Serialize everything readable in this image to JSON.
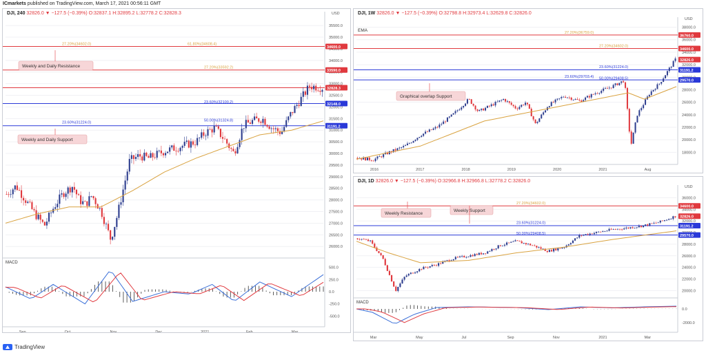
{
  "header": {
    "publisher": "ICmarkets",
    "published_text": " published on TradingView.com, March 17, 2021 00:56:11 GMT"
  },
  "footer": {
    "brand": "TradingView"
  },
  "colors": {
    "up": "#2f3f8f",
    "down": "#e0393e",
    "ma": "#d9a23f",
    "fib": "#d9a23f",
    "blue_line": "#2a39d8",
    "red_line": "#e0393e",
    "macd": "#3a6fd8",
    "signal": "#e0393e"
  },
  "panels": {
    "left": {
      "symbol": "DJI, 240",
      "ohlc": " 32826.0 ▼ −127.5 (−0.39%) O:32837.1 H:32895.2 L:32778.2 C:32828.3",
      "currency": "USD",
      "y_ticks": [
        "35500.0",
        "35000.0",
        "34500.0",
        "34000.0",
        "33500.0",
        "33000.0",
        "32500.0",
        "32000.0",
        "31500.0",
        "31000.0",
        "30500.0",
        "30000.0",
        "29500.0",
        "29000.0",
        "28500.0",
        "28000.0",
        "27500.0",
        "27000.0",
        "26500.0",
        "26000.0"
      ],
      "x_ticks": [
        "Sep",
        "Oct",
        "Nov",
        "Dec",
        "2021",
        "Feb",
        "Mar"
      ],
      "price_tags": [
        {
          "text": "34600.0",
          "color": "#e0393e",
          "value": 34600
        },
        {
          "text": "33590.0",
          "color": "#e0393e",
          "value": 33590
        },
        {
          "text": "32828.3",
          "color": "#e0393e",
          "value": 32828
        },
        {
          "text": "32148.0",
          "color": "#2a39d8",
          "value": 32148
        },
        {
          "text": "31191.2",
          "color": "#2a39d8",
          "value": 31191
        }
      ],
      "fib_labels": [
        {
          "text": "27.20%(34602.0)",
          "value": 34602,
          "color": "#d9a23f"
        },
        {
          "text": "61.80%(34608.4)",
          "value": 34608,
          "color": "#d9a23f"
        },
        {
          "text": "27.20%(33592.2)",
          "value": 33592,
          "color": "#d9a23f"
        },
        {
          "text": "23.60%(32100.2)",
          "value": 32100,
          "color": "#2a39d8"
        },
        {
          "text": "23.60%(31224.0)",
          "value": 31224,
          "color": "#2a39d8"
        },
        {
          "text": "50.00%(31324.8)",
          "value": 31324,
          "color": "#2a39d8"
        }
      ],
      "callouts": [
        "Weekly and Daily Resistance",
        "Weekly and Daily Support"
      ],
      "macd_label": "MACD",
      "macd_ticks": [
        "500.0",
        "250.0",
        "0.0",
        "-250.0",
        "-500.0"
      ]
    },
    "top_right": {
      "symbol": "DJI, 1W",
      "ohlc": " 32826.0 ▼ −127.5 (−0.39%) O:32798.8 H:32973.4 L:32629.8 C:32826.0",
      "currency": "USD",
      "ema_label": "EMA",
      "y_ticks": [
        "38000.0",
        "36000.0",
        "34000.0",
        "32000.0",
        "30000.0",
        "28000.0",
        "26000.0",
        "24000.0",
        "22000.0",
        "20000.0",
        "18000.0"
      ],
      "x_ticks": [
        "2016",
        "2017",
        "2018",
        "2019",
        "2020",
        "2021",
        "Aug"
      ],
      "price_tags": [
        {
          "text": "36760.0",
          "color": "#e0393e",
          "value": 36760
        },
        {
          "text": "34600.0",
          "color": "#e0393e",
          "value": 34600
        },
        {
          "text": "32826.0",
          "color": "#e0393e",
          "value": 32826
        },
        {
          "text": "31191.2",
          "color": "#2a39d8",
          "value": 31191
        },
        {
          "text": "29570.0",
          "color": "#2a39d8",
          "value": 29570
        }
      ],
      "fib_labels": [
        {
          "text": "27.20%(36759.0)",
          "value": 36759,
          "color": "#d9a23f"
        },
        {
          "text": "27.20%(34602.0)",
          "value": 34602,
          "color": "#d9a23f"
        },
        {
          "text": "23.60%(31224.0)",
          "value": 31224,
          "color": "#2a39d8"
        },
        {
          "text": "23.60%(29703.4)",
          "value": 29703,
          "color": "#2a39d8"
        },
        {
          "text": "50.00%(29408.5)",
          "value": 29408,
          "color": "#2a39d8"
        }
      ],
      "callouts": [
        "Graphical overlap Support"
      ]
    },
    "bottom_right": {
      "symbol": "DJI, 1D",
      "ohlc": " 32826.0 ▼ −127.5 (−0.39%) O:32966.8 H:32966.8 L:32778.2 C:32826.0",
      "currency": "USD",
      "y_ticks": [
        "36000.0",
        "34000.0",
        "32000.0",
        "30000.0",
        "28000.0",
        "26000.0",
        "24000.0",
        "22000.0",
        "20000.0"
      ],
      "x_ticks": [
        "Mar",
        "May",
        "Jul",
        "Sep",
        "Nov",
        "2021",
        "Mar"
      ],
      "price_tags": [
        {
          "text": "34600.0",
          "color": "#e0393e",
          "value": 34600
        },
        {
          "text": "32826.0",
          "color": "#e0393e",
          "value": 32826
        },
        {
          "text": "31191.2",
          "color": "#2a39d8",
          "value": 31191
        },
        {
          "text": "29570.0",
          "color": "#2a39d8",
          "value": 29570
        }
      ],
      "fib_labels": [
        {
          "text": "27.20%(34602.0)",
          "value": 34602,
          "color": "#d9a23f"
        },
        {
          "text": "23.60%(31224.0)",
          "value": 31224,
          "color": "#2a39d8"
        },
        {
          "text": "50.00%(29408.5)",
          "value": 29408,
          "color": "#2a39d8"
        }
      ],
      "callouts": [
        "Weekly Resistance",
        "Weekly Support"
      ],
      "macd_label": "MACD",
      "macd_ticks": [
        "0.0",
        "-2000.0"
      ]
    }
  },
  "chart_data": [
    {
      "type": "candlestick",
      "title": "DJI, 240",
      "ylim": [
        25800,
        35800
      ],
      "path": [
        [
          0,
          28250
        ],
        [
          0.03,
          28600
        ],
        [
          0.06,
          28000
        ],
        [
          0.09,
          27400
        ],
        [
          0.12,
          26900
        ],
        [
          0.15,
          27700
        ],
        [
          0.18,
          28300
        ],
        [
          0.21,
          28600
        ],
        [
          0.23,
          28000
        ],
        [
          0.25,
          27800
        ],
        [
          0.27,
          28200
        ],
        [
          0.3,
          27500
        ],
        [
          0.33,
          26300
        ],
        [
          0.35,
          27300
        ],
        [
          0.37,
          28500
        ],
        [
          0.39,
          29700
        ],
        [
          0.42,
          29900
        ],
        [
          0.45,
          29800
        ],
        [
          0.5,
          30100
        ],
        [
          0.55,
          30300
        ],
        [
          0.6,
          30500
        ],
        [
          0.63,
          30900
        ],
        [
          0.66,
          31100
        ],
        [
          0.69,
          30600
        ],
        [
          0.72,
          30000
        ],
        [
          0.75,
          31200
        ],
        [
          0.78,
          31400
        ],
        [
          0.81,
          31500
        ],
        [
          0.84,
          31100
        ],
        [
          0.87,
          30900
        ],
        [
          0.9,
          31700
        ],
        [
          0.93,
          32300
        ],
        [
          0.96,
          32900
        ],
        [
          1.0,
          32828
        ]
      ],
      "ma": [
        [
          0,
          27000
        ],
        [
          0.1,
          27400
        ],
        [
          0.2,
          27700
        ],
        [
          0.3,
          27700
        ],
        [
          0.4,
          28400
        ],
        [
          0.5,
          29200
        ],
        [
          0.6,
          29800
        ],
        [
          0.7,
          30300
        ],
        [
          0.8,
          30800
        ],
        [
          0.9,
          31000
        ],
        [
          1.0,
          31400
        ]
      ],
      "macd": [
        [
          0,
          100
        ],
        [
          0.08,
          -150
        ],
        [
          0.15,
          150
        ],
        [
          0.25,
          -250
        ],
        [
          0.33,
          450
        ],
        [
          0.4,
          -200
        ],
        [
          0.5,
          0
        ],
        [
          0.58,
          -50
        ],
        [
          0.65,
          150
        ],
        [
          0.72,
          -200
        ],
        [
          0.8,
          200
        ],
        [
          0.9,
          -100
        ],
        [
          1.0,
          350
        ]
      ]
    },
    {
      "type": "candlestick",
      "title": "DJI, 1W",
      "ylim": [
        16500,
        38500
      ],
      "path": [
        [
          0,
          17100
        ],
        [
          0.05,
          16800
        ],
        [
          0.1,
          18000
        ],
        [
          0.15,
          19000
        ],
        [
          0.2,
          20800
        ],
        [
          0.25,
          22000
        ],
        [
          0.3,
          24000
        ],
        [
          0.35,
          26500
        ],
        [
          0.38,
          24500
        ],
        [
          0.42,
          25500
        ],
        [
          0.46,
          26500
        ],
        [
          0.5,
          25000
        ],
        [
          0.53,
          26000
        ],
        [
          0.56,
          22500
        ],
        [
          0.6,
          25500
        ],
        [
          0.65,
          27000
        ],
        [
          0.7,
          26200
        ],
        [
          0.75,
          27500
        ],
        [
          0.8,
          28500
        ],
        [
          0.84,
          29500
        ],
        [
          0.86,
          19000
        ],
        [
          0.88,
          24000
        ],
        [
          0.92,
          27500
        ],
        [
          0.95,
          29000
        ],
        [
          1.0,
          32826
        ]
      ],
      "ma": [
        [
          0,
          16900
        ],
        [
          0.2,
          19000
        ],
        [
          0.4,
          23000
        ],
        [
          0.6,
          25000
        ],
        [
          0.8,
          27000
        ],
        [
          0.85,
          27500
        ],
        [
          0.9,
          26500
        ],
        [
          1.0,
          28500
        ]
      ]
    },
    {
      "type": "candlestick",
      "title": "DJI, 1D",
      "ylim": [
        18500,
        37000
      ],
      "path": [
        [
          0,
          29000
        ],
        [
          0.04,
          28500
        ],
        [
          0.08,
          25500
        ],
        [
          0.12,
          20000
        ],
        [
          0.15,
          22500
        ],
        [
          0.2,
          23800
        ],
        [
          0.25,
          24500
        ],
        [
          0.3,
          25500
        ],
        [
          0.35,
          26000
        ],
        [
          0.4,
          26500
        ],
        [
          0.45,
          27800
        ],
        [
          0.5,
          28500
        ],
        [
          0.55,
          27800
        ],
        [
          0.6,
          26800
        ],
        [
          0.65,
          27500
        ],
        [
          0.7,
          29500
        ],
        [
          0.75,
          30000
        ],
        [
          0.8,
          30500
        ],
        [
          0.85,
          30800
        ],
        [
          0.9,
          31200
        ],
        [
          0.95,
          31800
        ],
        [
          1.0,
          32826
        ]
      ],
      "ma": [
        [
          0,
          28500
        ],
        [
          0.1,
          26500
        ],
        [
          0.2,
          24800
        ],
        [
          0.35,
          25200
        ],
        [
          0.5,
          26500
        ],
        [
          0.65,
          27500
        ],
        [
          0.8,
          28800
        ],
        [
          1.0,
          30300
        ]
      ],
      "macd": [
        [
          0,
          0
        ],
        [
          0.05,
          -500
        ],
        [
          0.12,
          -2200
        ],
        [
          0.18,
          -800
        ],
        [
          0.25,
          200
        ],
        [
          0.35,
          300
        ],
        [
          0.5,
          200
        ],
        [
          0.6,
          -100
        ],
        [
          0.7,
          300
        ],
        [
          0.8,
          150
        ],
        [
          0.9,
          300
        ],
        [
          1.0,
          400
        ]
      ]
    }
  ]
}
